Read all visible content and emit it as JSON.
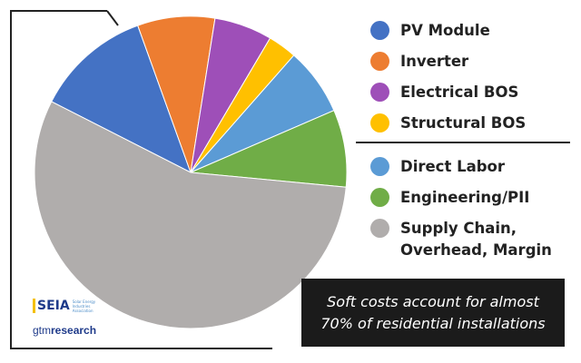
{
  "colors": {
    "frame": "#222222",
    "background": "#ffffff"
  },
  "chart_data": {
    "type": "pie",
    "title": "",
    "slices": [
      {
        "label": "PV Module",
        "value": 12,
        "color": "#4472c4"
      },
      {
        "label": "Inverter",
        "value": 8,
        "color": "#ed7d31"
      },
      {
        "label": "Electrical BOS",
        "value": 6,
        "color": "#9e4fb8"
      },
      {
        "label": "Structural BOS",
        "value": 3,
        "color": "#ffc000"
      },
      {
        "label": "Direct Labor",
        "value": 7,
        "color": "#5b9bd5"
      },
      {
        "label": "Engineering/PII",
        "value": 8,
        "color": "#70ad47"
      },
      {
        "label": "Supply Chain, Overhead, Margin",
        "value": 56,
        "color": "#b0adac"
      }
    ],
    "legend_groups": [
      {
        "name": "hardware",
        "items": [
          {
            "lines": [
              "PV Module"
            ],
            "color": "#4472c4"
          },
          {
            "lines": [
              "Inverter"
            ],
            "color": "#ed7d31"
          },
          {
            "lines": [
              "Electrical BOS"
            ],
            "color": "#9e4fb8"
          },
          {
            "lines": [
              "Structural BOS"
            ],
            "color": "#ffc000"
          }
        ]
      },
      {
        "name": "soft-costs",
        "items": [
          {
            "lines": [
              "Direct Labor"
            ],
            "color": "#5b9bd5"
          },
          {
            "lines": [
              "Engineering/PII"
            ],
            "color": "#70ad47"
          },
          {
            "lines": [
              "Supply Chain,",
              "Overhead, Margin"
            ],
            "color": "#b0adac"
          }
        ]
      }
    ],
    "legend_placement": "right",
    "callout": {
      "line1": "Soft costs account for almost",
      "line2": "70% of residential installations"
    }
  },
  "logos": {
    "seia": {
      "mark": "SEIA",
      "subtitle": "Solar Energy Industries Association"
    },
    "gtm": {
      "light": "gtm",
      "bold": "research"
    }
  }
}
